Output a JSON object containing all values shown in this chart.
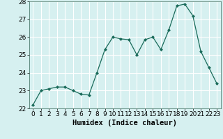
{
  "x": [
    0,
    1,
    2,
    3,
    4,
    5,
    6,
    7,
    8,
    9,
    10,
    11,
    12,
    13,
    14,
    15,
    16,
    17,
    18,
    19,
    20,
    21,
    22,
    23
  ],
  "y": [
    22.2,
    23.0,
    23.1,
    23.2,
    23.2,
    23.0,
    22.8,
    22.75,
    24.0,
    25.3,
    26.0,
    25.9,
    25.85,
    25.0,
    25.85,
    26.0,
    25.3,
    26.4,
    27.75,
    27.85,
    27.2,
    25.2,
    24.3,
    23.4
  ],
  "line_color": "#1a6b5a",
  "marker": "D",
  "marker_size": 2.0,
  "bg_color": "#d6f0f0",
  "grid_color": "#ffffff",
  "xlabel": "Humidex (Indice chaleur)",
  "xlim": [
    -0.5,
    23.5
  ],
  "ylim": [
    22,
    28
  ],
  "yticks": [
    22,
    23,
    24,
    25,
    26,
    27,
    28
  ],
  "xticks": [
    0,
    1,
    2,
    3,
    4,
    5,
    6,
    7,
    8,
    9,
    10,
    11,
    12,
    13,
    14,
    15,
    16,
    17,
    18,
    19,
    20,
    21,
    22,
    23
  ],
  "xlabel_fontsize": 7.5,
  "tick_fontsize": 6.5
}
